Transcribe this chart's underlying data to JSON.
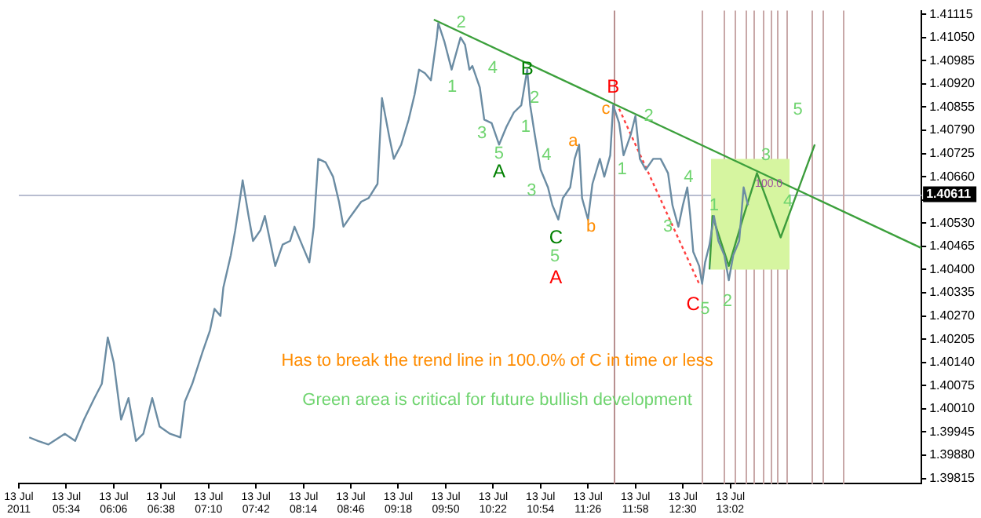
{
  "chart_data": {
    "type": "line",
    "marker": "none",
    "grid": false,
    "legend": false,
    "annotations": [
      "Has to break the trend line in 100.0% of C in time or less",
      "Green area is critical for future bullish development",
      "2",
      "1",
      "4",
      "3",
      "5",
      {
        "text": "2",
        "x": "2011-07-13T10:50",
        "y": 1.4088
      },
      {
        "text": "1",
        "x": "2011-07-13T10:44",
        "y": 1.408
      },
      {
        "text": "4",
        "x": "2011-07-13T10:58",
        "y": 1.4072
      },
      {
        "text": "3",
        "x": "2011-07-13T10:48",
        "y": 1.4062
      },
      "5",
      {
        "text": "1",
        "x": "2011-07-13T11:49",
        "y": 1.4068
      },
      {
        "text": "2",
        "x": "2011-07-13T12:07",
        "y": 1.4083
      },
      "4",
      {
        "text": "3",
        "x": "2011-07-13T12:20",
        "y": 1.4052
      },
      {
        "text": "5",
        "x": "2011-07-13T12:45",
        "y": 1.4029
      },
      {
        "text": "1",
        "x": "2011-07-13T12:51",
        "y": 1.4058
      },
      {
        "text": "2",
        "x": "2011-07-13T13:00",
        "y": 1.4031
      },
      {
        "text": "3",
        "x": "2011-07-13T13:26",
        "y": 1.4072
      },
      {
        "text": "4",
        "x": "2011-07-13T13:41",
        "y": 1.4059
      },
      "5",
      {
        "text": "B",
        "x": "2011-07-13T10:45",
        "y": 1.4096
      },
      "A",
      "C",
      {
        "text": "B",
        "x": "2011-07-13T11:43",
        "y": 1.4091
      },
      "A",
      "C",
      {
        "text": "c",
        "x": "2011-07-13T11:38",
        "y": 1.4085
      },
      {
        "text": "a",
        "x": "2011-07-13T11:16",
        "y": 1.4076
      },
      {
        "text": "b",
        "x": "2011-07-13T11:28",
        "y": 1.4052
      },
      {
        "text": "100.0",
        "x": "2011-07-13T13:28",
        "y": 1.4064
      }
    ],
    "xlim": [
      "2011-07-13T05:02",
      "2011-07-13T15:11"
    ],
    "xticks": [
      {
        "value": "2011-07-13T05:02",
        "label": "13 Jul 2011"
      },
      {
        "value": "2011-07-13T05:34",
        "label": "13 Jul 05:34"
      },
      {
        "value": "2011-07-13T06:06",
        "label": "13 Jul 06:06"
      },
      {
        "value": "2011-07-13T06:38",
        "label": "13 Jul 06:38"
      },
      {
        "value": "2011-07-13T07:10",
        "label": "13 Jul 07:10"
      },
      {
        "value": "2011-07-13T07:42",
        "label": "13 Jul 07:42"
      },
      {
        "value": "2011-07-13T08:14",
        "label": "13 Jul 08:14"
      },
      {
        "value": "2011-07-13T08:46",
        "label": "13 Jul 08:46"
      },
      {
        "value": "2011-07-13T09:18",
        "label": "13 Jul 09:18"
      },
      {
        "value": "2011-07-13T09:50",
        "label": "13 Jul 09:50"
      },
      {
        "value": "2011-07-13T10:22",
        "label": "13 Jul 10:22"
      },
      {
        "value": "2011-07-13T10:54",
        "label": "13 Jul 10:54"
      },
      {
        "value": "2011-07-13T11:26",
        "label": "13 Jul 11:26"
      },
      {
        "value": "2011-07-13T11:58",
        "label": "13 Jul 11:58"
      },
      {
        "value": "2011-07-13T12:30",
        "label": "13 Jul 12:30"
      },
      {
        "value": "2011-07-13T13:02",
        "label": "13 Jul 13:02"
      }
    ],
    "ylim": [
      1.398,
      1.41125
    ],
    "yticks": [
      1.39815,
      {
        "value": 1.3988,
        "label": "1.39880"
      },
      1.39945,
      {
        "value": 1.4001,
        "label": "1.40010"
      },
      1.40075,
      {
        "value": 1.4014,
        "label": "1.40140"
      },
      1.40205,
      {
        "value": 1.4027,
        "label": "1.40270"
      },
      1.40335,
      {
        "value": 1.404,
        "label": "1.40400"
      },
      1.40465,
      {
        "value": 1.4053,
        "label": "1.40530"
      },
      {
        "value": 1.40595,
        "label": null
      },
      {
        "value": 1.4066,
        "label": "1.40660"
      },
      1.40725,
      {
        "value": 1.4079,
        "label": "1.40790"
      },
      1.40855,
      {
        "value": 1.4092,
        "label": "1.40920"
      },
      1.40985,
      {
        "value": 1.4105,
        "label": "1.41050"
      },
      1.41115
    ],
    "ref_lines": [
      {
        "axis": "y",
        "value": 1.40611,
        "label": "1.40611",
        "color": "#b8bdd0"
      },
      {
        "axis": "x",
        "value": "2011-07-13T11:43",
        "color": "#b89090"
      },
      {
        "axis": "x",
        "value": "2011-07-13T12:43",
        "color": "#c8a8a8"
      },
      {
        "axis": "x",
        "value": "2011-07-13T12:57",
        "color": "#c8a8a8"
      },
      {
        "axis": "x",
        "value": "2011-07-13T13:05",
        "color": "#c8a8a8"
      },
      {
        "axis": "x",
        "value": "2011-07-13T13:12",
        "color": "#c8a8a8"
      },
      {
        "axis": "x",
        "value": "2011-07-13T13:18",
        "color": "#c8a8a8"
      },
      {
        "axis": "x",
        "value": "2011-07-13T13:24",
        "color": "#c8a8a8"
      },
      {
        "axis": "x",
        "value": "2011-07-13T13:29",
        "color": "#c8a8a8"
      },
      {
        "axis": "x",
        "value": "2011-07-13T13:34",
        "color": "#c8a8a8"
      },
      {
        "axis": "x",
        "value": "2011-07-13T13:40",
        "color": "#c8a8a8"
      },
      {
        "axis": "x",
        "value": "2011-07-13T13:57",
        "color": "#c8a8a8"
      },
      {
        "axis": "x",
        "value": "2011-07-13T14:04",
        "color": "#c8a8a8"
      },
      {
        "axis": "x",
        "value": "2011-07-13T14:18",
        "color": "#c8a8a8"
      }
    ],
    "series": [
      {
        "type": "line",
        "color": "#d6f5a0",
        "x": [
          "2011-07-13T12:49",
          "2011-07-13T13:42"
        ],
        "values": [
          null,
          null
        ],
        "lower": [
          1.404,
          1.404
        ],
        "upper": [
          1.4071,
          1.4071
        ]
      },
      {
        "type": "line",
        "color": "#6b8ca3",
        "x": [
          "2011-07-13T05:09",
          "2011-07-13T05:15",
          "2011-07-13T05:22",
          "2011-07-13T05:33",
          "2011-07-13T05:40",
          "2011-07-13T05:46",
          "2011-07-13T05:53",
          "2011-07-13T05:58",
          "2011-07-13T06:02",
          "2011-07-13T06:06",
          "2011-07-13T06:11",
          "2011-07-13T06:16",
          "2011-07-13T06:21",
          "2011-07-13T06:26",
          "2011-07-13T06:32",
          "2011-07-13T06:37",
          "2011-07-13T06:44",
          "2011-07-13T06:51",
          "2011-07-13T06:54",
          "2011-07-13T06:59",
          "2011-07-13T07:06",
          "2011-07-13T07:11",
          "2011-07-13T07:14",
          "2011-07-13T07:18",
          "2011-07-13T07:20",
          "2011-07-13T07:25",
          "2011-07-13T07:28",
          "2011-07-13T07:32",
          "2011-07-13T07:33",
          "2011-07-13T07:37",
          "2011-07-13T07:40",
          "2011-07-13T07:45",
          "2011-07-13T07:48",
          "2011-07-13T07:52",
          "2011-07-13T07:55",
          "2011-07-13T08:00",
          "2011-07-13T08:05",
          "2011-07-13T08:08",
          "2011-07-13T08:13",
          "2011-07-13T08:18",
          "2011-07-13T08:21",
          "2011-07-13T08:24",
          "2011-07-13T08:29",
          "2011-07-13T08:34",
          "2011-07-13T08:38",
          "2011-07-13T08:41",
          "2011-07-13T08:46",
          "2011-07-13T08:53",
          "2011-07-13T08:58",
          "2011-07-13T09:04",
          "2011-07-13T09:07",
          "2011-07-13T09:12",
          "2011-07-13T09:15",
          "2011-07-13T09:20",
          "2011-07-13T09:25",
          "2011-07-13T09:29",
          "2011-07-13T09:32",
          "2011-07-13T09:36",
          "2011-07-13T09:40",
          "2011-07-13T09:44",
          "2011-07-13T09:45",
          "2011-07-13T09:49",
          "2011-07-13T09:54",
          "2011-07-13T10:00",
          "2011-07-13T10:03",
          "2011-07-13T10:06",
          "2011-07-13T10:08",
          "2011-07-13T10:13",
          "2011-07-13T10:16",
          "2011-07-13T10:21",
          "2011-07-13T10:26",
          "2011-07-13T10:31",
          "2011-07-13T10:36",
          "2011-07-13T10:41",
          "2011-07-13T10:45",
          "2011-07-13T10:47",
          "2011-07-13T10:50",
          "2011-07-13T10:54",
          "2011-07-13T10:59",
          "2011-07-13T11:02",
          "2011-07-13T11:06",
          "2011-07-13T11:09",
          "2011-07-13T11:14",
          "2011-07-13T11:17",
          "2011-07-13T11:20",
          "2011-07-13T11:22",
          "2011-07-13T11:26",
          "2011-07-13T11:29",
          "2011-07-13T11:34",
          "2011-07-13T11:37",
          "2011-07-13T11:41",
          "2011-07-13T11:43",
          "2011-07-13T11:47",
          "2011-07-13T11:50",
          "2011-07-13T11:55",
          "2011-07-13T11:58",
          "2011-07-13T12:01",
          "2011-07-13T12:05",
          "2011-07-13T12:10",
          "2011-07-13T12:15",
          "2011-07-13T12:20",
          "2011-07-13T12:23",
          "2011-07-13T12:27",
          "2011-07-13T12:30",
          "2011-07-13T12:33",
          "2011-07-13T12:35",
          "2011-07-13T12:37",
          "2011-07-13T12:41",
          "2011-07-13T12:43",
          "2011-07-13T12:45",
          "2011-07-13T12:48",
          "2011-07-13T12:51",
          "2011-07-13T12:54",
          "2011-07-13T12:58",
          "2011-07-13T13:01",
          "2011-07-13T13:04",
          "2011-07-13T13:08",
          "2011-07-13T13:11",
          "2011-07-13T13:14"
        ],
        "values": [
          1.3993,
          1.3992,
          1.3991,
          1.3994,
          1.3992,
          1.3998,
          1.4004,
          1.4008,
          1.4021,
          1.4014,
          1.3998,
          1.4004,
          1.3992,
          1.3994,
          1.4004,
          1.3996,
          1.3994,
          1.3993,
          1.4003,
          1.4008,
          1.4017,
          1.4023,
          1.4029,
          1.4027,
          1.4035,
          1.4044,
          1.4051,
          1.4062,
          1.4065,
          1.4055,
          1.4048,
          1.4051,
          1.4055,
          1.4047,
          1.4041,
          1.4047,
          1.4048,
          1.4052,
          1.4047,
          1.4042,
          1.4052,
          1.4071,
          1.407,
          1.4066,
          1.4059,
          1.4052,
          1.4055,
          1.4059,
          1.406,
          1.4064,
          1.4088,
          1.4077,
          1.4071,
          1.4075,
          1.4082,
          1.4089,
          1.4096,
          1.4095,
          1.4093,
          1.4105,
          1.4109,
          1.4104,
          1.4096,
          1.4105,
          1.4103,
          1.4096,
          1.4097,
          1.4091,
          1.4082,
          1.4081,
          1.4075,
          1.408,
          1.4084,
          1.4086,
          1.4096,
          1.4086,
          1.4078,
          1.4068,
          1.4063,
          1.4058,
          1.4054,
          1.406,
          1.4063,
          1.4071,
          1.4075,
          1.406,
          1.4054,
          1.4064,
          1.4071,
          1.4066,
          1.4072,
          1.4086,
          1.4081,
          1.4072,
          1.4078,
          1.4083,
          1.4071,
          1.4068,
          1.4071,
          1.4071,
          1.4067,
          1.4058,
          1.4052,
          1.4058,
          1.4063,
          1.4055,
          1.4045,
          1.4041,
          1.4036,
          1.4042,
          1.4047,
          1.4055,
          1.4048,
          1.4044,
          1.4037,
          1.4044,
          1.4048,
          1.4063,
          1.4058
        ]
      },
      {
        "type": "line",
        "color": "#3ca03c",
        "x": [
          "2011-07-13T09:42",
          "2011-07-13T15:11"
        ],
        "values": [
          1.411,
          1.4046
        ]
      },
      {
        "type": "line",
        "color": "#ff4040",
        "line_style": "dotted",
        "x": [
          "2011-07-13T11:47",
          "2011-07-13T12:41"
        ],
        "values": [
          1.4085,
          1.4036
        ]
      },
      {
        "type": "line",
        "color": "#3c9c3c",
        "x": [
          "2011-07-13T12:48",
          "2011-07-13T12:50",
          "2011-07-13T13:01",
          "2011-07-13T13:11",
          "2011-07-13T13:20",
          "2011-07-13T13:36",
          "2011-07-13T13:59"
        ],
        "values": [
          1.404,
          1.4055,
          1.4041,
          1.4055,
          1.4067,
          1.4049,
          1.4075
        ]
      }
    ]
  }
}
